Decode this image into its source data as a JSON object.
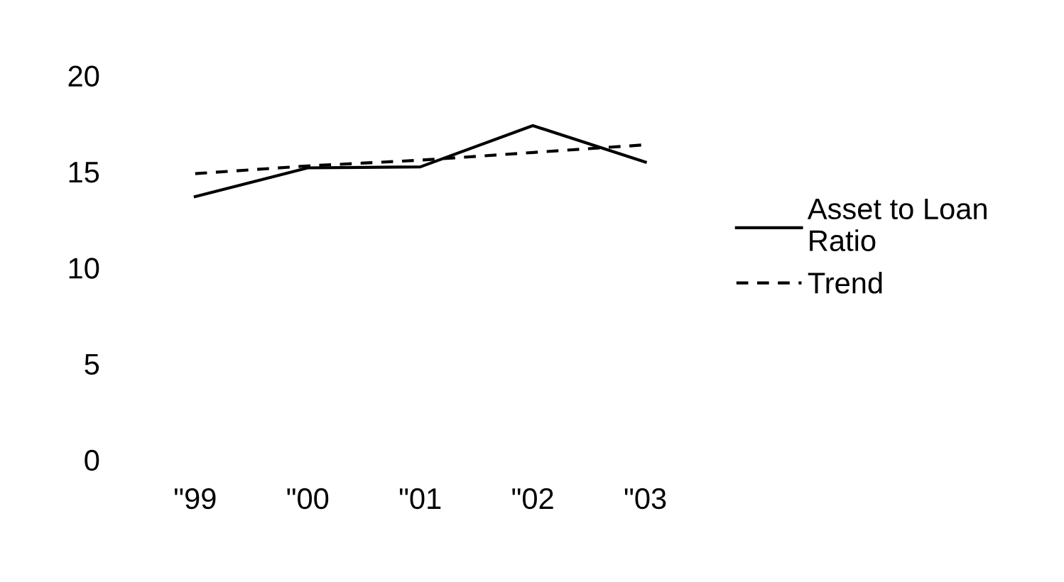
{
  "chart_data": {
    "type": "line",
    "categories": [
      "\"99",
      "\"00",
      "\"01",
      "\"02",
      "\"03"
    ],
    "series": [
      {
        "name": "Asset to Loan\nRatio",
        "color": "#000000",
        "values": [
          13.7,
          15.2,
          15.25,
          17.4,
          15.5
        ],
        "line_style": "solid"
      },
      {
        "name": "Trend",
        "color": "#000000",
        "values": [
          14.9,
          15.3,
          15.6,
          16.0,
          16.4
        ],
        "line_style": "dashed"
      }
    ],
    "ylim": [
      0,
      20
    ],
    "yticks": [
      0,
      5,
      10,
      15,
      20
    ],
    "grid": false,
    "legend": "right",
    "marker": "none"
  }
}
